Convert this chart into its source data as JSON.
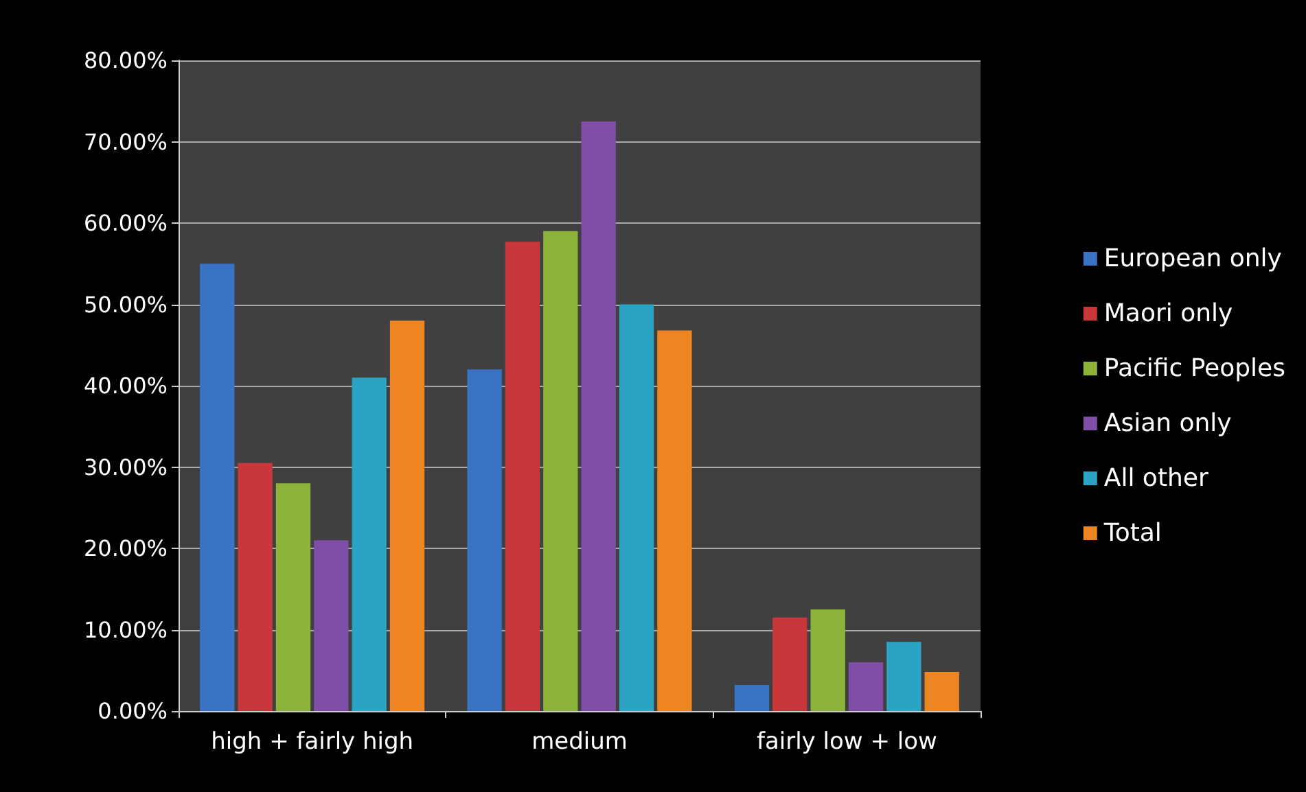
{
  "chart_data": {
    "type": "bar",
    "categories": [
      "high + fairly high",
      "medium",
      "fairly low + low"
    ],
    "series": [
      {
        "name": "European only",
        "color": "#3a72c4",
        "values": [
          55,
          42,
          3.2
        ]
      },
      {
        "name": "Maori only",
        "color": "#c8373a",
        "values": [
          30.5,
          57.7,
          11.5
        ]
      },
      {
        "name": "Pacific Peoples",
        "color": "#8db33a",
        "values": [
          28,
          59,
          12.5
        ]
      },
      {
        "name": "Asian only",
        "color": "#7f4fa8",
        "values": [
          21,
          72.5,
          6
        ]
      },
      {
        "name": "All other",
        "color": "#2aa3c4",
        "values": [
          41,
          50,
          8.5
        ]
      },
      {
        "name": "Total",
        "color": "#ee8523",
        "values": [
          48,
          46.8,
          4.8
        ]
      }
    ],
    "ylim": [
      0,
      80
    ],
    "yticks": [
      {
        "value": 0,
        "label": "0.00%"
      },
      {
        "value": 10,
        "label": "10.00%"
      },
      {
        "value": 20,
        "label": "20.00%"
      },
      {
        "value": 30,
        "label": "30.00%"
      },
      {
        "value": 40,
        "label": "40.00%"
      },
      {
        "value": 50,
        "label": "50.00%"
      },
      {
        "value": 60,
        "label": "60.00%"
      },
      {
        "value": 70,
        "label": "70.00%"
      },
      {
        "value": 80,
        "label": "80.00%"
      }
    ],
    "grid": "y",
    "legend": "right"
  }
}
